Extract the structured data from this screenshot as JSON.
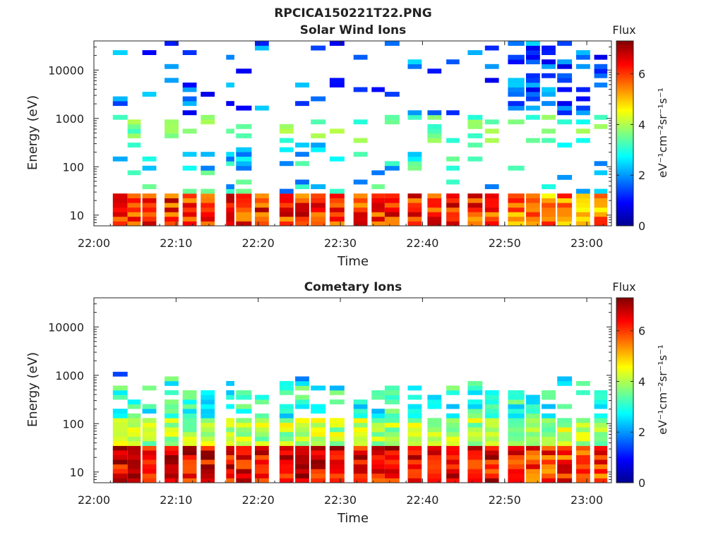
{
  "figure_title": "RPCICA150221T22.PNG",
  "colors": {
    "colormap": "jet",
    "axis": "#262626",
    "background": "#ffffff"
  },
  "chart_data": [
    {
      "type": "heatmap",
      "title": "Solar Wind Ions",
      "xlabel": "Time",
      "ylabel": "Energy (eV)",
      "x_range": [
        "22:00",
        "23:03"
      ],
      "x_ticks": [
        "22:00",
        "22:10",
        "22:20",
        "22:30",
        "22:40",
        "22:50",
        "23:00"
      ],
      "y_scale": "log",
      "y_range": [
        6,
        40000
      ],
      "y_ticks": [
        10,
        100,
        1000,
        10000
      ],
      "y_tick_labels": [
        "10",
        "100",
        "1000",
        "10000"
      ],
      "colorbar": {
        "title": "Flux",
        "unit_label": "eV⁻¹cm⁻²sr⁻¹s⁻¹",
        "range": [
          0,
          7.3
        ],
        "ticks": [
          0,
          2,
          4,
          6
        ],
        "tick_labels": [
          "0",
          "2",
          "4",
          "6"
        ]
      },
      "sweep_start_times_min": [
        2.3,
        4.1,
        5.9,
        8.6,
        10.8,
        13.0,
        16.1,
        17.3,
        19.6,
        22.6,
        24.5,
        26.4,
        28.7,
        31.6,
        33.8,
        35.4,
        38.2,
        40.6,
        42.9,
        45.5,
        47.6,
        50.4,
        52.6,
        54.5,
        56.4,
        58.7,
        60.9
      ],
      "sweep_durations_min": [
        1.8,
        1.6,
        1.7,
        1.7,
        1.7,
        1.7,
        1.0,
        1.9,
        1.7,
        1.7,
        1.7,
        1.8,
        1.8,
        1.7,
        1.6,
        1.8,
        1.7,
        1.7,
        1.6,
        1.8,
        1.7,
        2.0,
        1.7,
        1.7,
        1.8,
        1.7,
        1.6
      ],
      "description": "Energy–time spectrogram, log10 flux color scale 0–7.3; low-energy (6–30 eV) flux ~4.5–7, sparse high-energy counts ~1–3"
    },
    {
      "type": "heatmap",
      "title": "Cometary Ions",
      "xlabel": "Time",
      "ylabel": "Energy (eV)",
      "x_range": [
        "22:00",
        "23:03"
      ],
      "x_ticks": [
        "22:00",
        "22:10",
        "22:20",
        "22:30",
        "22:40",
        "22:50",
        "23:00"
      ],
      "y_scale": "log",
      "y_range": [
        6,
        40000
      ],
      "y_ticks": [
        10,
        100,
        1000,
        10000
      ],
      "y_tick_labels": [
        "10",
        "100",
        "1000",
        "10000"
      ],
      "colorbar": {
        "title": "Flux",
        "unit_label": "eV⁻¹cm⁻²sr⁻¹s⁻¹",
        "range": [
          0,
          7.3
        ],
        "ticks": [
          0,
          2,
          4,
          6
        ],
        "tick_labels": [
          "0",
          "2",
          "4",
          "6"
        ]
      },
      "sweep_start_times_min": [
        2.3,
        4.1,
        5.9,
        8.6,
        10.8,
        13.0,
        16.1,
        17.3,
        19.6,
        22.6,
        24.5,
        26.4,
        28.7,
        31.6,
        33.8,
        35.4,
        38.2,
        40.6,
        42.9,
        45.5,
        47.6,
        50.4,
        52.6,
        54.5,
        56.4,
        58.7,
        60.9
      ],
      "sweep_durations_min": [
        1.8,
        1.6,
        1.7,
        1.7,
        1.7,
        1.7,
        1.0,
        1.9,
        1.7,
        1.7,
        1.7,
        1.8,
        1.8,
        1.7,
        1.6,
        1.8,
        1.7,
        1.7,
        1.6,
        1.8,
        1.7,
        2.0,
        1.7,
        1.7,
        1.8,
        1.7,
        1.6
      ],
      "description": "Energy–time spectrogram, log10 flux color scale 0–7.3; intense low-energy (6–40 eV) flux ~5–7.3 decreasing with energy up to ~800 eV"
    }
  ]
}
